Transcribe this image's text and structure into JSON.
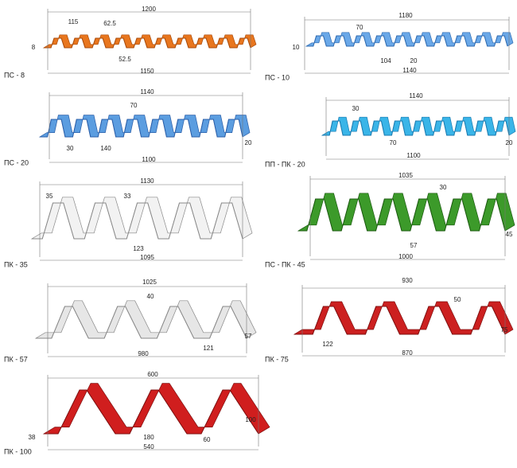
{
  "profiles": [
    {
      "name": "ПС - 8",
      "dims": [
        "1200",
        "115",
        "62.5",
        "8",
        "52.5",
        "1150"
      ]
    },
    {
      "name": "ПС - 10",
      "dims": [
        "1180",
        "70",
        "10",
        "104",
        "20",
        "1140"
      ]
    },
    {
      "name": "ПС - 20",
      "dims": [
        "1140",
        "70",
        "30",
        "140",
        "20",
        "1100"
      ]
    },
    {
      "name": "ПП - ПК - 20",
      "dims": [
        "1140",
        "30",
        "70",
        "20",
        "1100"
      ]
    },
    {
      "name": "ПК - 35",
      "dims": [
        "1130",
        "35",
        "33",
        "123",
        "1095"
      ]
    },
    {
      "name": "ПС - ПК - 45",
      "dims": [
        "1035",
        "30",
        "57",
        "45",
        "1000"
      ]
    },
    {
      "name": "ПК - 57",
      "dims": [
        "1025",
        "40",
        "121",
        "57",
        "980"
      ]
    },
    {
      "name": "ПК - 75",
      "dims": [
        "930",
        "50",
        "75",
        "122",
        "870"
      ]
    },
    {
      "name": "ПК - 100",
      "dims": [
        "600",
        "180",
        "60",
        "100",
        "38",
        "540"
      ]
    }
  ]
}
